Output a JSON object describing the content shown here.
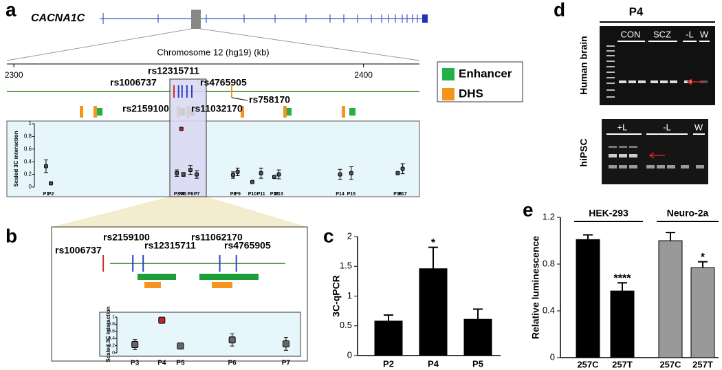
{
  "chart_data": [
    {
      "panel": "a",
      "type": "scatter",
      "gene": "CACNA1C",
      "axis_label": "Chromosome 12 (hg19) (kb)",
      "xlim": [
        2298,
        2416
      ],
      "xticks": [
        2300,
        2400
      ],
      "ylabel": "Scaled 3C interaction",
      "ylim": [
        0,
        1
      ],
      "yticks": [
        0,
        0.2,
        0.4,
        0.6,
        0.8,
        1
      ],
      "categories": [
        "P1",
        "P2",
        "P3",
        "P4",
        "P5",
        "P6",
        "P7",
        "P8",
        "P9",
        "P10",
        "P11",
        "P12",
        "P13",
        "P14",
        "P15",
        "P16",
        "P17"
      ],
      "x": [
        2309.2,
        2310.6,
        2346.6,
        2347.9,
        2348.5,
        2350.5,
        2352.3,
        2362.7,
        2364.0,
        2368.2,
        2370.7,
        2374.5,
        2375.8,
        2393.3,
        2396.5,
        2409.8,
        2411.2
      ],
      "values": [
        0.33,
        0.06,
        0.22,
        0.92,
        0.2,
        0.27,
        0.2,
        0.19,
        0.24,
        0.08,
        0.22,
        0.16,
        0.2,
        0.2,
        0.22,
        0.22,
        0.29
      ],
      "errors": [
        0.1,
        0.01,
        0.05,
        0.02,
        0.03,
        0.07,
        0.06,
        0.05,
        0.06,
        0.01,
        0.08,
        0.02,
        0.07,
        0.08,
        0.1,
        0.02,
        0.08
      ],
      "colors": [
        "#555",
        "#555",
        "#555",
        "#c0272d",
        "#555",
        "#555",
        "#555",
        "#555",
        "#555",
        "#555",
        "#555",
        "#555",
        "#555",
        "#555",
        "#555",
        "#555",
        "#555"
      ],
      "snps": [
        {
          "name": "rs1006737",
          "x": 2345.8,
          "color": "#d42a2a"
        },
        {
          "name": "rs2159100",
          "x": 2347.1,
          "color": "#2b3fc4"
        },
        {
          "name": "rs12315711",
          "x": 2348.1,
          "color": "#2b3fc4"
        },
        {
          "name": "rs11032170",
          "x": 2349.5,
          "color": "#2b3fc4"
        },
        {
          "name": "rs4765905",
          "x": 2350.9,
          "color": "#2b3fc4"
        },
        {
          "name": "rs758170",
          "x": 2362.3,
          "color": "#f7941d"
        }
      ],
      "legend": [
        {
          "name": "Enhancer",
          "color": "#22b04b"
        },
        {
          "name": "DHS",
          "color": "#f7941d"
        }
      ]
    },
    {
      "panel": "b",
      "type": "scatter",
      "xlim": [
        2344.6,
        2354.3
      ],
      "ylabel": "Scaled 3C interaction",
      "ylim": [
        0,
        1
      ],
      "yticks": [
        0,
        0.2,
        0.4,
        0.6,
        0.8,
        1
      ],
      "categories": [
        "P3",
        "P4",
        "P5",
        "P6",
        "P7"
      ],
      "x": [
        2346.3,
        2347.6,
        2348.5,
        2351.0,
        2353.6
      ],
      "values": [
        0.23,
        0.91,
        0.19,
        0.36,
        0.25
      ],
      "errors": [
        0.14,
        0.04,
        0.02,
        0.17,
        0.18
      ],
      "colors": [
        "#666",
        "#c0272d",
        "#666",
        "#666",
        "#666"
      ],
      "snps": [
        {
          "name": "rs1006737",
          "x": 2344.77,
          "color": "#d42a2a"
        },
        {
          "name": "rs2159100",
          "x": 2346.2,
          "color": "#2b3fc4"
        },
        {
          "name": "rs12315711",
          "x": 2346.7,
          "color": "#2b3fc4"
        },
        {
          "name": "rs11062170",
          "x": 2350.4,
          "color": "#2b3fc4"
        },
        {
          "name": "rs4765905",
          "x": 2351.2,
          "color": "#2b3fc4"
        }
      ]
    },
    {
      "panel": "c",
      "type": "bar",
      "ylabel": "3C-qPCR",
      "ylim": [
        0,
        2
      ],
      "yticks": [
        0,
        0.5,
        1,
        1.5,
        2
      ],
      "categories": [
        "P2",
        "P4",
        "P5"
      ],
      "values": [
        0.58,
        1.46,
        0.61
      ],
      "errors": [
        0.1,
        0.36,
        0.17
      ],
      "colors": [
        "#000",
        "#000",
        "#000"
      ],
      "annotations": [
        null,
        "*",
        null
      ]
    },
    {
      "panel": "e",
      "type": "bar",
      "ylabel": "Relative luminescence",
      "ylim": [
        0,
        1.2
      ],
      "yticks": [
        0,
        0.4,
        0.8,
        1.2
      ],
      "groups": [
        "HEK-293",
        "Neuro-2a"
      ],
      "categories": [
        "257C",
        "257T",
        "257C",
        "257T"
      ],
      "values": [
        1.01,
        0.57,
        1.0,
        0.77
      ],
      "errors": [
        0.04,
        0.07,
        0.07,
        0.05
      ],
      "colors": [
        "#000",
        "#000",
        "#999",
        "#999"
      ],
      "annotations": [
        null,
        "****",
        null,
        "*"
      ]
    }
  ],
  "gel": {
    "panel": "d",
    "title": "P4",
    "top": {
      "label": "Human brain",
      "lanes": [
        "CON",
        "SCZ",
        "-L",
        "W"
      ]
    },
    "bottom": {
      "label": "hiPSC",
      "lanes": [
        "+L",
        "-L",
        "W"
      ]
    }
  }
}
